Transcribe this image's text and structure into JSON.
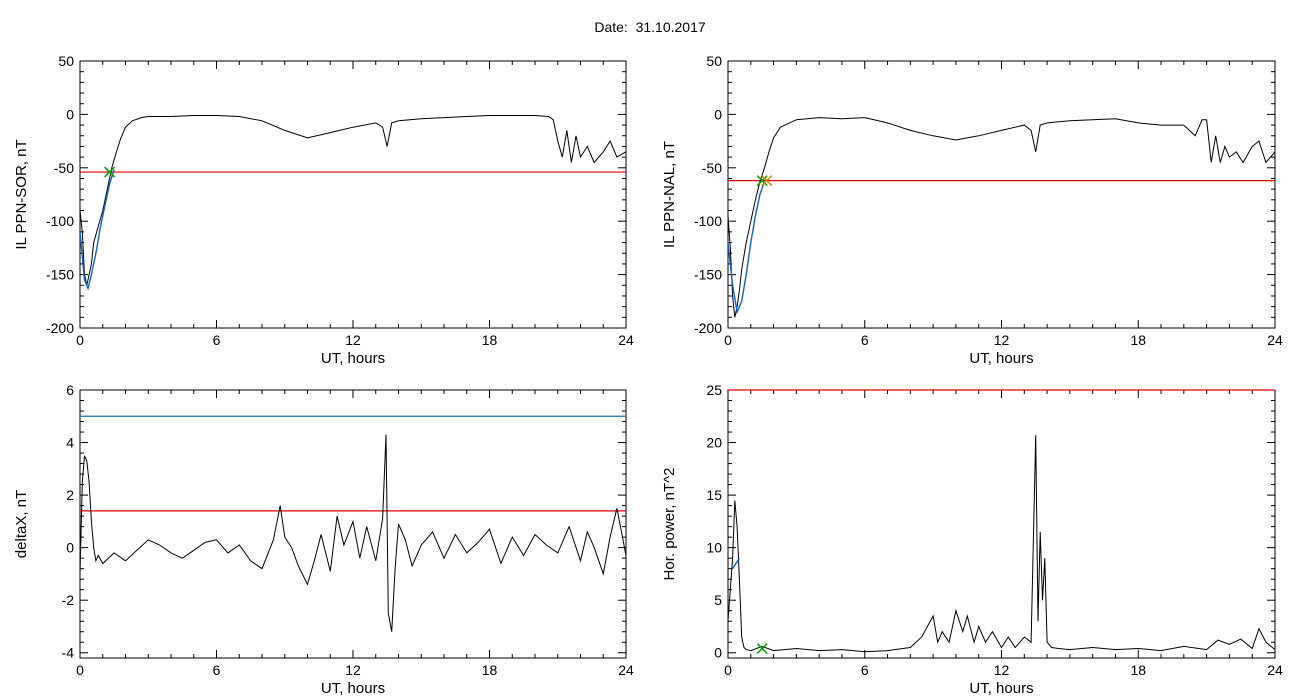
{
  "figure": {
    "date_label": "Date:",
    "date_value": "31.10.2017"
  },
  "chart_data": [
    {
      "id": "il-sor",
      "type": "line",
      "xlabel": "UT, hours",
      "ylabel": "IL PPN-SOR, nT",
      "xlim": [
        0,
        24
      ],
      "ylim": [
        -200,
        50
      ],
      "xticks": [
        0,
        6,
        12,
        18,
        24
      ],
      "yticks": [
        -200,
        -150,
        -100,
        -50,
        0,
        50
      ],
      "threshold_lines": [
        {
          "y": -54,
          "color": "#e00000"
        }
      ],
      "series": [
        {
          "color": "#000000",
          "x": [
            0,
            0.1,
            0.2,
            0.3,
            0.4,
            0.5,
            0.6,
            0.8,
            1.0,
            1.2,
            1.4,
            1.6,
            1.8,
            2.0,
            2.3,
            2.7,
            3,
            4,
            5,
            6,
            7,
            8,
            9,
            10,
            11,
            12,
            13,
            13.3,
            13.5,
            13.7,
            14,
            15,
            16,
            17,
            18,
            19,
            20,
            20.6,
            20.8,
            21,
            21.2,
            21.4,
            21.6,
            21.8,
            22,
            22.3,
            22.6,
            23,
            23.3,
            23.6,
            24
          ],
          "y": [
            -90,
            -110,
            -150,
            -160,
            -150,
            -140,
            -120,
            -105,
            -90,
            -70,
            -50,
            -35,
            -22,
            -12,
            -6,
            -3,
            -2,
            -2,
            -1,
            -1,
            -2,
            -6,
            -15,
            -22,
            -17,
            -12,
            -8,
            -12,
            -30,
            -8,
            -6,
            -4,
            -3,
            -2,
            -1,
            -1,
            -1,
            -2,
            -5,
            -25,
            -40,
            -15,
            -45,
            -20,
            -40,
            -30,
            -45,
            -35,
            -25,
            -40,
            -35
          ]
        },
        {
          "color": "#1060d0",
          "x": [
            0,
            0.2,
            0.35,
            0.5,
            0.7,
            0.9,
            1.1,
            1.3,
            1.5
          ],
          "y": [
            -110,
            -155,
            -163,
            -150,
            -130,
            -105,
            -85,
            -65,
            -52
          ]
        }
      ],
      "markers": [
        {
          "x": 1.3,
          "y": -54,
          "color": "#00a000",
          "symbol": "x"
        }
      ]
    },
    {
      "id": "il-nal",
      "type": "line",
      "xlabel": "UT, hours",
      "ylabel": "IL PPN-NAL, nT",
      "xlim": [
        0,
        24
      ],
      "ylim": [
        -200,
        50
      ],
      "xticks": [
        0,
        6,
        12,
        18,
        24
      ],
      "yticks": [
        -200,
        -150,
        -100,
        -50,
        0,
        50
      ],
      "threshold_lines": [
        {
          "y": -62,
          "color": "#e00000"
        }
      ],
      "series": [
        {
          "color": "#000000",
          "x": [
            0,
            0.1,
            0.2,
            0.3,
            0.4,
            0.5,
            0.6,
            0.8,
            1.0,
            1.2,
            1.4,
            1.6,
            1.8,
            2.0,
            2.3,
            2.7,
            3,
            4,
            5,
            6,
            7,
            8,
            9,
            10,
            11,
            12,
            13,
            13.3,
            13.5,
            13.7,
            14,
            15,
            16,
            17,
            18,
            19,
            20,
            20.5,
            20.8,
            21,
            21.2,
            21.4,
            21.6,
            21.8,
            22,
            22.3,
            22.6,
            23,
            23.3,
            23.6,
            24
          ],
          "y": [
            -95,
            -125,
            -170,
            -190,
            -180,
            -165,
            -145,
            -120,
            -100,
            -80,
            -63,
            -50,
            -35,
            -22,
            -12,
            -8,
            -5,
            -3,
            -4,
            -3,
            -8,
            -15,
            -20,
            -24,
            -20,
            -15,
            -10,
            -15,
            -35,
            -10,
            -8,
            -6,
            -5,
            -4,
            -8,
            -10,
            -10,
            -20,
            -5,
            -5,
            -45,
            -20,
            -45,
            -30,
            -40,
            -35,
            -45,
            -30,
            -25,
            -45,
            -35
          ]
        },
        {
          "color": "#1060d0",
          "x": [
            0,
            0.2,
            0.4,
            0.6,
            0.8,
            1.0,
            1.2,
            1.4,
            1.6
          ],
          "y": [
            -120,
            -160,
            -185,
            -175,
            -150,
            -120,
            -95,
            -75,
            -63
          ]
        }
      ],
      "markers": [
        {
          "x": 1.5,
          "y": -62,
          "color": "#00a000",
          "symbol": "x"
        },
        {
          "x": 1.7,
          "y": -62,
          "color": "#e08000",
          "symbol": "x"
        }
      ]
    },
    {
      "id": "deltax",
      "type": "line",
      "xlabel": "UT, hours",
      "ylabel": "deltaX, nT",
      "xlim": [
        0,
        24
      ],
      "ylim": [
        -4.2,
        6
      ],
      "xticks": [
        0,
        6,
        12,
        18,
        24
      ],
      "yticks": [
        -4,
        -2,
        0,
        2,
        4,
        6
      ],
      "threshold_lines": [
        {
          "y": 5.0,
          "color": "#1a78a8"
        },
        {
          "y": 1.4,
          "color": "#e00000"
        }
      ],
      "series": [
        {
          "color": "#000000",
          "x": [
            0,
            0.1,
            0.2,
            0.3,
            0.4,
            0.5,
            0.6,
            0.7,
            0.8,
            1,
            1.5,
            2,
            2.5,
            3,
            3.5,
            4,
            4.5,
            5,
            5.5,
            6,
            6.5,
            7,
            7.5,
            8,
            8.5,
            8.8,
            9,
            9.3,
            9.6,
            10,
            10.3,
            10.6,
            11,
            11.3,
            11.6,
            12,
            12.3,
            12.6,
            13,
            13.3,
            13.45,
            13.55,
            13.7,
            13.85,
            14,
            14.3,
            14.6,
            15,
            15.5,
            16,
            16.5,
            17,
            17.5,
            18,
            18.5,
            19,
            19.5,
            20,
            20.5,
            21,
            21.5,
            22,
            22.3,
            22.6,
            23,
            23.3,
            23.6,
            24
          ],
          "y": [
            -1.0,
            2.5,
            3.5,
            3.3,
            2.5,
            1.0,
            0,
            -0.5,
            -0.3,
            -0.6,
            -0.2,
            -0.5,
            -0.1,
            0.3,
            0.1,
            -0.2,
            -0.4,
            -0.1,
            0.2,
            0.3,
            -0.2,
            0.1,
            -0.5,
            -0.8,
            0.3,
            1.6,
            0.4,
            0,
            -0.7,
            -1.4,
            -0.5,
            0.5,
            -0.9,
            1.2,
            0.1,
            1.0,
            -0.4,
            0.8,
            -0.5,
            1.1,
            4.3,
            -2.5,
            -3.2,
            -0.8,
            0.9,
            0.3,
            -0.7,
            0.1,
            0.6,
            -0.4,
            0.5,
            -0.2,
            0.2,
            0.7,
            -0.6,
            0.4,
            -0.3,
            0.5,
            0.1,
            -0.2,
            0.8,
            -0.5,
            0.6,
            0,
            -1.0,
            0.4,
            1.5,
            -0.3
          ]
        }
      ]
    },
    {
      "id": "hor-power",
      "type": "line",
      "xlabel": "UT, hours",
      "ylabel": "Hor. power, nT^2",
      "xlim": [
        0,
        24
      ],
      "ylim": [
        -0.5,
        25
      ],
      "xticks": [
        0,
        6,
        12,
        18,
        24
      ],
      "yticks": [
        0,
        5,
        10,
        15,
        20,
        25
      ],
      "threshold_lines": [
        {
          "y": 25,
          "color": "#e00000"
        }
      ],
      "series": [
        {
          "color": "#000000",
          "x": [
            0,
            0.1,
            0.2,
            0.3,
            0.4,
            0.5,
            0.6,
            0.7,
            0.8,
            1.0,
            1.5,
            2,
            3,
            4,
            5,
            6,
            7,
            8,
            8.5,
            9,
            9.2,
            9.4,
            9.7,
            10,
            10.3,
            10.5,
            10.8,
            11,
            11.3,
            11.6,
            12,
            12.3,
            12.6,
            13,
            13.3,
            13.5,
            13.6,
            13.7,
            13.8,
            13.9,
            14,
            14.2,
            14.5,
            15,
            16,
            17,
            18,
            19,
            20,
            21,
            21.5,
            22,
            22.5,
            23,
            23.3,
            23.6,
            24
          ],
          "y": [
            3,
            6,
            9,
            14.5,
            12,
            7,
            1.5,
            0.5,
            0.3,
            0.2,
            0.6,
            0.2,
            0.4,
            0.2,
            0.3,
            0.1,
            0.2,
            0.5,
            1.5,
            3.5,
            1,
            2,
            1,
            4,
            2,
            3.5,
            1,
            2.5,
            1,
            2,
            0.5,
            1.5,
            0.5,
            1.5,
            1,
            20.7,
            3,
            11.5,
            5,
            9,
            1,
            0.5,
            0.4,
            0.3,
            0.5,
            0.3,
            0.4,
            0.2,
            0.6,
            0.3,
            1.2,
            0.8,
            1.3,
            0.4,
            2.3,
            1.0,
            0.3
          ]
        },
        {
          "color": "#1060d0",
          "x": [
            0.2,
            0.35,
            0.5
          ],
          "y": [
            8,
            8.5,
            9
          ]
        }
      ],
      "markers": [
        {
          "x": 1.5,
          "y": 0.4,
          "color": "#00a000",
          "symbol": "x"
        }
      ]
    }
  ]
}
